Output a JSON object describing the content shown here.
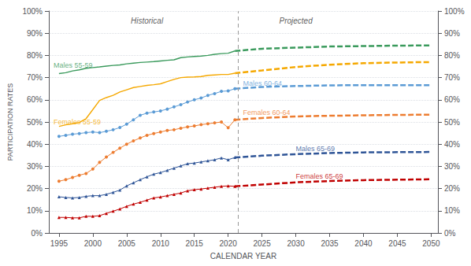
{
  "chart_data": {
    "type": "line",
    "xlabel": "CALENDAR YEAR",
    "ylabel": "PARTICIPATION RATES",
    "xlim": [
      1993.5,
      2051
    ],
    "xticks": [
      1995,
      2000,
      2005,
      2010,
      2015,
      2020,
      2025,
      2030,
      2035,
      2040,
      2045,
      2050
    ],
    "ylim": [
      0,
      1.0
    ],
    "yticks": [
      {
        "value": 0.0,
        "label": "0%"
      },
      {
        "value": 0.1,
        "label": "10%"
      },
      {
        "value": 0.2,
        "label": "20%"
      },
      {
        "value": 0.3,
        "label": "30%"
      },
      {
        "value": 0.4,
        "label": "40%"
      },
      {
        "value": 0.5,
        "label": "50%"
      },
      {
        "value": 0.6,
        "label": "60%"
      },
      {
        "value": 0.7,
        "label": "70%"
      },
      {
        "value": 0.8,
        "label": "80%"
      },
      {
        "value": 0.9,
        "label": "90%"
      },
      {
        "value": 1.0,
        "label": "100%"
      }
    ],
    "y2lim": [
      0,
      1.0
    ],
    "y2ticks": [
      {
        "value": 0.0,
        "label": "0%"
      },
      {
        "value": 0.1,
        "label": "10%"
      },
      {
        "value": 0.2,
        "label": "20%"
      },
      {
        "value": 0.3,
        "label": "30%"
      },
      {
        "value": 0.4,
        "label": "40%"
      },
      {
        "value": 0.5,
        "label": "50%"
      },
      {
        "value": 0.6,
        "label": "60%"
      },
      {
        "value": 0.7,
        "label": "70%"
      },
      {
        "value": 0.8,
        "label": "80%"
      },
      {
        "value": 0.9,
        "label": "90%"
      },
      {
        "value": 1.0,
        "label": "100%"
      }
    ],
    "grid": "y",
    "vlines": [
      2021.5
    ],
    "series": [
      {
        "name": "Males 55-59",
        "color": "#3a9a5c",
        "marker": "none",
        "line_style": "solid",
        "x": [
          1995,
          1996,
          1997,
          1998,
          1999,
          2000,
          2001,
          2002,
          2003,
          2004,
          2005,
          2006,
          2007,
          2008,
          2009,
          2010,
          2011,
          2012,
          2013,
          2014,
          2015,
          2016,
          2017,
          2018,
          2019,
          2020,
          2021
        ],
        "values": [
          0.718,
          0.722,
          0.73,
          0.735,
          0.742,
          0.745,
          0.748,
          0.752,
          0.755,
          0.757,
          0.762,
          0.765,
          0.768,
          0.77,
          0.772,
          0.775,
          0.778,
          0.78,
          0.79,
          0.793,
          0.795,
          0.797,
          0.8,
          0.805,
          0.808,
          0.81,
          0.82
        ]
      },
      {
        "name": "Males 55-59",
        "color": "#3a9a5c",
        "marker": "none",
        "line_style": "dashed",
        "x": [
          2021,
          2025,
          2030,
          2035,
          2040,
          2045,
          2050
        ],
        "values": [
          0.82,
          0.83,
          0.835,
          0.84,
          0.842,
          0.844,
          0.845
        ]
      },
      {
        "name": "Females 55-59",
        "color": "#f5a800",
        "marker": "none",
        "line_style": "solid",
        "x": [
          1995,
          1996,
          1997,
          1998,
          1999,
          2000,
          2001,
          2002,
          2003,
          2004,
          2005,
          2006,
          2007,
          2008,
          2009,
          2010,
          2011,
          2012,
          2013,
          2014,
          2015,
          2016,
          2017,
          2018,
          2019,
          2020,
          2021
        ],
        "values": [
          0.48,
          0.487,
          0.492,
          0.498,
          0.515,
          0.556,
          0.597,
          0.61,
          0.62,
          0.635,
          0.645,
          0.655,
          0.66,
          0.665,
          0.668,
          0.672,
          0.682,
          0.692,
          0.7,
          0.702,
          0.703,
          0.705,
          0.71,
          0.712,
          0.714,
          0.714,
          0.72
        ]
      },
      {
        "name": "Females 55-59",
        "color": "#f5a800",
        "marker": "none",
        "line_style": "dashed",
        "x": [
          2021,
          2025,
          2030,
          2035,
          2040,
          2045,
          2050
        ],
        "values": [
          0.72,
          0.732,
          0.748,
          0.758,
          0.765,
          0.768,
          0.77
        ]
      },
      {
        "name": "Males 60-64",
        "color": "#5b9bd5",
        "marker": "circle",
        "line_style": "solid",
        "x": [
          1995,
          1996,
          1997,
          1998,
          1999,
          2000,
          2001,
          2002,
          2003,
          2004,
          2005,
          2006,
          2007,
          2008,
          2009,
          2010,
          2011,
          2012,
          2013,
          2014,
          2015,
          2016,
          2017,
          2018,
          2019,
          2020,
          2021
        ],
        "values": [
          0.435,
          0.44,
          0.445,
          0.448,
          0.452,
          0.455,
          0.452,
          0.458,
          0.465,
          0.475,
          0.49,
          0.51,
          0.53,
          0.54,
          0.545,
          0.55,
          0.558,
          0.568,
          0.578,
          0.59,
          0.6,
          0.608,
          0.62,
          0.628,
          0.638,
          0.64,
          0.65
        ]
      },
      {
        "name": "Males 60-64",
        "color": "#5b9bd5",
        "marker": "none",
        "line_style": "dashed",
        "x": [
          2021,
          2025,
          2030,
          2035,
          2040,
          2045,
          2050
        ],
        "values": [
          0.65,
          0.658,
          0.662,
          0.665,
          0.666,
          0.666,
          0.666
        ]
      },
      {
        "name": "Females 60-64",
        "color": "#ed7d31",
        "marker": "circle",
        "line_style": "solid",
        "x": [
          1995,
          1996,
          1997,
          1998,
          1999,
          2000,
          2001,
          2002,
          2003,
          2004,
          2005,
          2006,
          2007,
          2008,
          2009,
          2010,
          2011,
          2012,
          2013,
          2014,
          2015,
          2016,
          2017,
          2018,
          2019,
          2020,
          2021
        ],
        "values": [
          0.233,
          0.24,
          0.25,
          0.26,
          0.268,
          0.288,
          0.318,
          0.342,
          0.363,
          0.382,
          0.4,
          0.415,
          0.428,
          0.44,
          0.448,
          0.455,
          0.462,
          0.465,
          0.472,
          0.478,
          0.482,
          0.488,
          0.492,
          0.496,
          0.5,
          0.474,
          0.51
        ]
      },
      {
        "name": "Females 60-64",
        "color": "#ed7d31",
        "marker": "none",
        "line_style": "dashed",
        "x": [
          2021,
          2025,
          2030,
          2035,
          2040,
          2045,
          2050
        ],
        "values": [
          0.51,
          0.518,
          0.525,
          0.528,
          0.53,
          0.532,
          0.533
        ]
      },
      {
        "name": "Males 65-69",
        "color": "#2f5597",
        "marker": "triangle",
        "line_style": "solid",
        "x": [
          1995,
          1996,
          1997,
          1998,
          1999,
          2000,
          2001,
          2002,
          2003,
          2004,
          2005,
          2006,
          2007,
          2008,
          2009,
          2010,
          2011,
          2012,
          2013,
          2014,
          2015,
          2016,
          2017,
          2018,
          2019,
          2020,
          2021
        ],
        "values": [
          0.163,
          0.16,
          0.158,
          0.16,
          0.165,
          0.168,
          0.168,
          0.174,
          0.183,
          0.193,
          0.212,
          0.226,
          0.24,
          0.253,
          0.265,
          0.272,
          0.282,
          0.292,
          0.302,
          0.312,
          0.315,
          0.32,
          0.325,
          0.33,
          0.338,
          0.33,
          0.34
        ]
      },
      {
        "name": "Males 65-69",
        "color": "#2f5597",
        "marker": "none",
        "line_style": "dashed",
        "x": [
          2021,
          2025,
          2030,
          2035,
          2040,
          2045,
          2050
        ],
        "values": [
          0.34,
          0.348,
          0.355,
          0.36,
          0.363,
          0.364,
          0.365
        ]
      },
      {
        "name": "Females 65-69",
        "color": "#c00000",
        "marker": "triangle",
        "line_style": "solid",
        "x": [
          1995,
          1996,
          1997,
          1998,
          1999,
          2000,
          2001,
          2002,
          2003,
          2004,
          2005,
          2006,
          2007,
          2008,
          2009,
          2010,
          2011,
          2012,
          2013,
          2014,
          2015,
          2016,
          2017,
          2018,
          2019,
          2020,
          2021
        ],
        "values": [
          0.07,
          0.07,
          0.068,
          0.068,
          0.075,
          0.075,
          0.078,
          0.088,
          0.098,
          0.108,
          0.12,
          0.13,
          0.138,
          0.148,
          0.158,
          0.162,
          0.168,
          0.174,
          0.18,
          0.19,
          0.195,
          0.198,
          0.202,
          0.206,
          0.21,
          0.212,
          0.21
        ]
      },
      {
        "name": "Females 65-69",
        "color": "#c00000",
        "marker": "none",
        "line_style": "dashed",
        "x": [
          2021,
          2025,
          2030,
          2035,
          2040,
          2045,
          2050
        ],
        "values": [
          0.21,
          0.218,
          0.228,
          0.234,
          0.238,
          0.24,
          0.242
        ]
      }
    ],
    "annotations": [
      {
        "text": "Historical",
        "x": 2008,
        "y": 0.972
      },
      {
        "text": "Projected",
        "x": 2030,
        "y": 0.972
      },
      {
        "text": "Males 55-59",
        "x": 1994.2,
        "y": 0.755,
        "color": "#3a9a5c"
      },
      {
        "text": "Females 55-59",
        "x": 1994.2,
        "y": 0.5,
        "color": "#f5a800"
      },
      {
        "text": "Males 60-64",
        "x": 2022.2,
        "y": 0.672,
        "color": "#5b9bd5"
      },
      {
        "text": "Females 60-64",
        "x": 2022.2,
        "y": 0.543,
        "color": "#ed7d31"
      },
      {
        "text": "Males 65-69",
        "x": 2030.0,
        "y": 0.378,
        "color": "#2f5597"
      },
      {
        "text": "Females 65-69",
        "x": 2030.0,
        "y": 0.257,
        "color": "#c00000"
      }
    ]
  }
}
